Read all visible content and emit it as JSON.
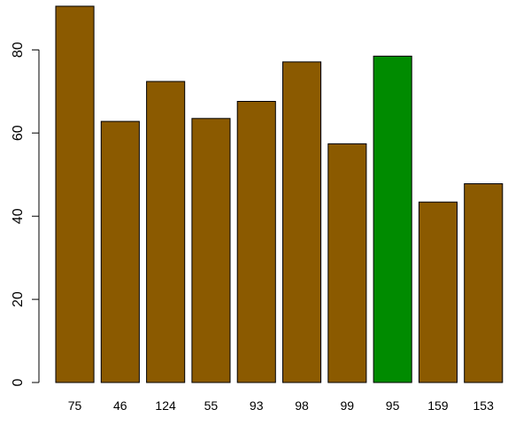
{
  "chart_data": {
    "type": "bar",
    "title": "",
    "xlabel": "",
    "ylabel": "",
    "categories": [
      "75",
      "46",
      "124",
      "55",
      "93",
      "98",
      "99",
      "95",
      "159",
      "153"
    ],
    "values": [
      90.5,
      62.8,
      72.4,
      63.5,
      67.6,
      77.1,
      57.4,
      78.5,
      43.4,
      47.8
    ],
    "ylim": [
      0,
      90.5
    ],
    "yticks": [
      0,
      20,
      40,
      60,
      80
    ],
    "bar_color": "#8B5A00",
    "highlight_color": "#008B00",
    "highlight_index": 7,
    "grid": false,
    "legend": "none"
  }
}
